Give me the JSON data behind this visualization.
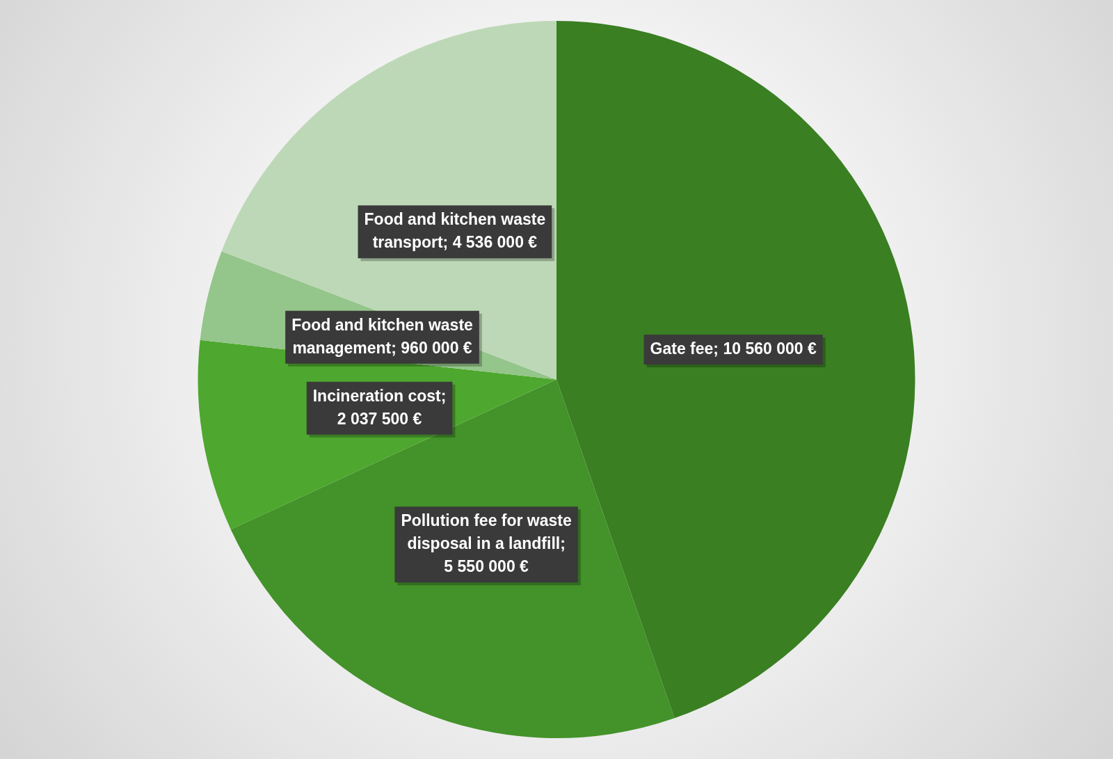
{
  "chart_data": {
    "type": "pie",
    "categories": [
      "Gate fee",
      "Pollution fee for waste disposal in a landfill",
      "Incineration cost",
      "Food and kitchen waste management",
      "Food and kitchen waste transport"
    ],
    "values": [
      10560000,
      5550000,
      2037500,
      960000,
      4536000
    ],
    "colors": [
      "#3a7f22",
      "#43922a",
      "#4ea72e",
      "#94c58a",
      "#bdd8b6"
    ],
    "value_labels": [
      "; 10 560 000 €",
      "; 5 550 000 €",
      "; 2 037 500 €",
      "; 960 000 €",
      "; 4 536 000 €"
    ],
    "legend": false
  }
}
